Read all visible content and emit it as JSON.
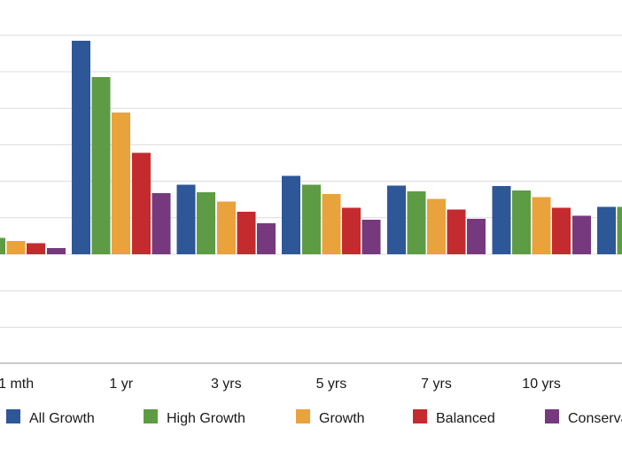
{
  "chart_data": {
    "type": "bar",
    "title": "",
    "xlabel": "",
    "ylabel": "",
    "categories": [
      "1 mth",
      "1 yr",
      "3 yrs",
      "5 yrs",
      "7 yrs",
      "10 yrs",
      ""
    ],
    "ylim": [
      -3,
      9
    ],
    "grid": true,
    "legend_position": "bottom",
    "series": [
      {
        "name": "All Growth",
        "color": "#2d5797",
        "values": [
          1.0,
          5.85,
          1.9,
          2.15,
          1.88,
          1.87,
          1.3
        ]
      },
      {
        "name": "High Growth",
        "color": "#5e9b45",
        "values": [
          0.45,
          4.85,
          1.7,
          1.9,
          1.72,
          1.75,
          1.3
        ]
      },
      {
        "name": "Growth",
        "color": "#eaa23c",
        "values": [
          0.37,
          3.88,
          1.45,
          1.65,
          1.52,
          1.57,
          null
        ]
      },
      {
        "name": "Balanced",
        "color": "#c42b2f",
        "values": [
          0.3,
          2.78,
          1.17,
          1.27,
          1.23,
          1.27,
          null
        ]
      },
      {
        "name": "Conservative",
        "color": "#77397e",
        "values": [
          0.17,
          1.68,
          0.85,
          0.95,
          0.97,
          1.05,
          null
        ]
      }
    ]
  }
}
